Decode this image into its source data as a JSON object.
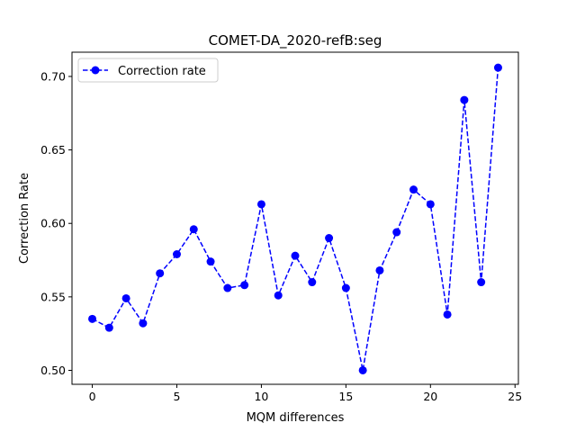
{
  "chart_data": {
    "type": "line",
    "title": "COMET-DA_2020-refB:seg",
    "xlabel": "MQM differences",
    "ylabel": "Correction Rate",
    "xlim": [
      -1.2,
      25.2
    ],
    "ylim": [
      0.4905,
      0.7165
    ],
    "xticks": [
      0,
      5,
      10,
      15,
      20,
      25
    ],
    "yticks": [
      0.5,
      0.55,
      0.6,
      0.65,
      0.7
    ],
    "grid": false,
    "legend": {
      "placement": "top-left"
    },
    "series": [
      {
        "name": "Correction rate",
        "color": "#0000ff",
        "line_style": "dashed",
        "marker": "circle",
        "x": [
          0,
          1,
          2,
          3,
          4,
          5,
          6,
          7,
          8,
          9,
          10,
          11,
          12,
          13,
          14,
          15,
          16,
          17,
          18,
          19,
          20,
          21,
          22,
          23,
          24
        ],
        "y": [
          0.535,
          0.529,
          0.549,
          0.532,
          0.566,
          0.579,
          0.596,
          0.574,
          0.556,
          0.558,
          0.613,
          0.551,
          0.578,
          0.56,
          0.59,
          0.556,
          0.5,
          0.568,
          0.594,
          0.623,
          0.613,
          0.538,
          0.684,
          0.56,
          0.706
        ]
      }
    ]
  }
}
